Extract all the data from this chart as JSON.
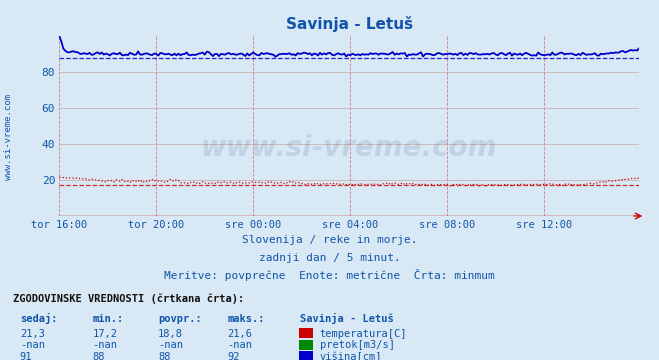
{
  "title": "Savinja - Letuš",
  "background_color": "#d8e8f4",
  "plot_bg_color": "#d8e8f4",
  "xlim": [
    0,
    287
  ],
  "ylim": [
    0,
    100
  ],
  "yticks": [
    20,
    40,
    60,
    80
  ],
  "xtick_labels": [
    "tor 16:00",
    "tor 20:00",
    "sre 00:00",
    "sre 04:00",
    "sre 08:00",
    "sre 12:00"
  ],
  "xtick_positions": [
    0,
    48,
    96,
    144,
    192,
    240
  ],
  "subtitle1": "Slovenija / reke in morje.",
  "subtitle2": "zadnji dan / 5 minut.",
  "subtitle3": "Meritve: povprečne  Enote: metrične  Črta: minmum",
  "legend_title": "Savinja - Letuš",
  "hist_title": "ZGODOVINSKE VREDNOSTI (črtkana črta):",
  "col_headers": [
    "sedaj:",
    "min.:",
    "povpr.:",
    "maks.:"
  ],
  "watermark": "www.si-vreme.com",
  "side_text": "www.si-vreme.com",
  "temp_color": "#cc0000",
  "flow_color": "#008800",
  "height_color": "#0000cc",
  "title_color": "#1155aa",
  "text_color": "#1155aa",
  "grid_color_v": "#cc6666",
  "grid_color_h": "#ccaaaa",
  "rows": [
    [
      "21,3",
      "17,2",
      "18,8",
      "21,6",
      "#cc0000",
      "temperatura[C]"
    ],
    [
      "-nan",
      "-nan",
      "-nan",
      "-nan",
      "#008800",
      "pretok[m3/s]"
    ],
    [
      "91",
      "88",
      "88",
      "92",
      "#0000cc",
      "višina[cm]"
    ]
  ]
}
